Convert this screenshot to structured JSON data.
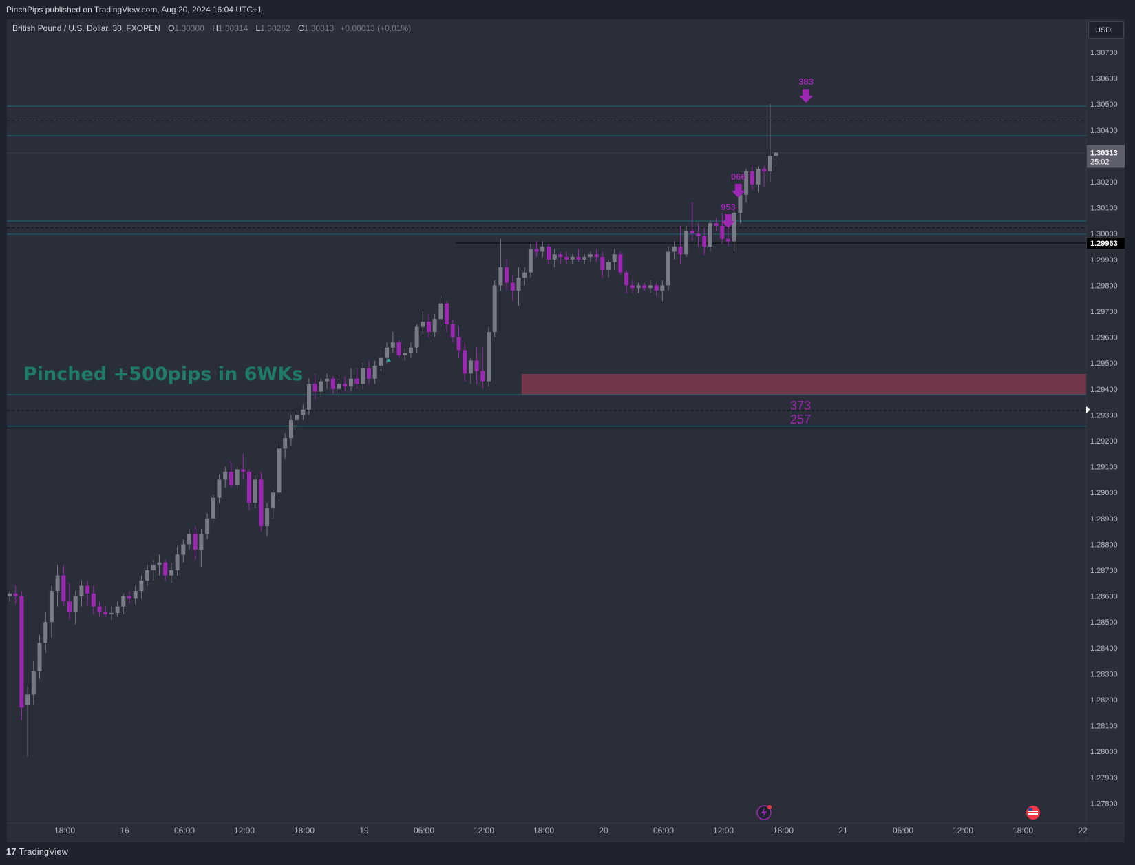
{
  "header": {
    "published": "PinchPips published on TradingView.com, Aug 20, 2024 16:04 UTC+1"
  },
  "symbol": {
    "title": "British Pound / U.S. Dollar, 30, FXOPEN",
    "o_label": "O",
    "o_value": "1.30300",
    "h_label": "H",
    "h_value": "1.30314",
    "l_label": "L",
    "l_value": "1.30262",
    "c_label": "C",
    "c_value": "1.30313",
    "change": "+0.00013 (+0.01%)"
  },
  "currency_button": "USD",
  "footer": {
    "brand": "TradingView",
    "brand_mark": "17"
  },
  "colors": {
    "background": "#2a2e39",
    "bull": "#787b86",
    "bear": "#9c27b0",
    "level_line": "#1b6e7a",
    "zone": "#8b3a4f",
    "annotation_text": "#1f7a6a",
    "marker": "#9c27b0"
  },
  "chart_data": {
    "type": "candlestick",
    "title": "British Pound / U.S. Dollar, 30, FXOPEN",
    "ylim": [
      1.2773,
      1.3081
    ],
    "y_ticks": [
      "1.30700",
      "1.30600",
      "1.30500",
      "1.30400",
      "1.30200",
      "1.30100",
      "1.30000",
      "1.29900",
      "1.29800",
      "1.29700",
      "1.29600",
      "1.29500",
      "1.29400",
      "1.29300",
      "1.29200",
      "1.29100",
      "1.29000",
      "1.28900",
      "1.28800",
      "1.28700",
      "1.28600",
      "1.28500",
      "1.28400",
      "1.28300",
      "1.28200",
      "1.28100",
      "1.28000",
      "1.27900",
      "1.27800"
    ],
    "x_ticks": [
      "18:00",
      "16",
      "06:00",
      "12:00",
      "18:00",
      "19",
      "06:00",
      "12:00",
      "18:00",
      "20",
      "06:00",
      "12:00",
      "18:00",
      "21",
      "06:00",
      "12:00",
      "18:00",
      "22"
    ],
    "price_label": {
      "value": "1.30313",
      "timer": "25:02"
    },
    "level_label": {
      "value": "1.29963"
    },
    "annotation": "Pinched +500pips in 6WKs",
    "horizontal_levels": [
      {
        "price": 1.30492,
        "style": "solid"
      },
      {
        "price": 1.30435,
        "style": "dashed"
      },
      {
        "price": 1.30378,
        "style": "solid"
      },
      {
        "price": 1.30313,
        "style": "dotted"
      },
      {
        "price": 1.30048,
        "style": "solid"
      },
      {
        "price": 1.30023,
        "style": "dashed"
      },
      {
        "price": 1.29998,
        "style": "solid"
      },
      {
        "price": 1.29378,
        "style": "solid"
      },
      {
        "price": 1.29317,
        "style": "dashed"
      },
      {
        "price": 1.29257,
        "style": "solid"
      }
    ],
    "black_level": {
      "price": 1.29963,
      "from": 74.5
    },
    "zone": {
      "from": 85.5,
      "top": 1.29458,
      "bottom": 1.29378
    },
    "zone_labels": [
      "373",
      "257"
    ],
    "markers": [
      {
        "label": "953",
        "index": 120,
        "price": 1.30016
      },
      {
        "label": "066",
        "index": 121.7,
        "price": 1.30134
      },
      {
        "label": "383",
        "index": 133,
        "price": 1.305
      }
    ],
    "candles": [
      [
        1.286,
        1.2862,
        1.2858,
        1.2861
      ],
      [
        1.2861,
        1.2864,
        1.2857,
        1.286
      ],
      [
        1.286,
        1.2862,
        1.2812,
        1.2817
      ],
      [
        1.2818,
        1.2825,
        1.2798,
        1.2822
      ],
      [
        1.2822,
        1.2835,
        1.2818,
        1.2831
      ],
      [
        1.2831,
        1.2845,
        1.2828,
        1.2842
      ],
      [
        1.2842,
        1.2854,
        1.2838,
        1.285
      ],
      [
        1.285,
        1.2864,
        1.2844,
        1.2862
      ],
      [
        1.2862,
        1.2872,
        1.2856,
        1.2868
      ],
      [
        1.2868,
        1.2872,
        1.2856,
        1.2858
      ],
      [
        1.2858,
        1.2865,
        1.2851,
        1.2854
      ],
      [
        1.2854,
        1.2862,
        1.2849,
        1.286
      ],
      [
        1.286,
        1.2866,
        1.2856,
        1.2864
      ],
      [
        1.2864,
        1.2866,
        1.2856,
        1.2861
      ],
      [
        1.2861,
        1.2864,
        1.2853,
        1.2856
      ],
      [
        1.2856,
        1.2858,
        1.2852,
        1.2854
      ],
      [
        1.2854,
        1.2856,
        1.2852,
        1.2853
      ],
      [
        1.2853,
        1.2856,
        1.2851,
        1.28535
      ],
      [
        1.28535,
        1.2858,
        1.2852,
        1.2856
      ],
      [
        1.2856,
        1.2861,
        1.2853,
        1.286
      ],
      [
        1.286,
        1.2862,
        1.2857,
        1.2859
      ],
      [
        1.2859,
        1.2864,
        1.2857,
        1.2862
      ],
      [
        1.2862,
        1.2868,
        1.2859,
        1.2866
      ],
      [
        1.2866,
        1.2872,
        1.2864,
        1.287
      ],
      [
        1.287,
        1.2874,
        1.2866,
        1.2872
      ],
      [
        1.2872,
        1.2876,
        1.2868,
        1.2873
      ],
      [
        1.2873,
        1.2874,
        1.2866,
        1.2868
      ],
      [
        1.2868,
        1.2873,
        1.2865,
        1.287
      ],
      [
        1.287,
        1.2879,
        1.2868,
        1.2876
      ],
      [
        1.2876,
        1.2882,
        1.2873,
        1.288
      ],
      [
        1.288,
        1.2886,
        1.2878,
        1.2884
      ],
      [
        1.2884,
        1.2887,
        1.2874,
        1.2878
      ],
      [
        1.2878,
        1.2886,
        1.2871,
        1.2884
      ],
      [
        1.2884,
        1.2892,
        1.2882,
        1.289
      ],
      [
        1.289,
        1.2899,
        1.2888,
        1.2898
      ],
      [
        1.2898,
        1.2907,
        1.2896,
        1.2905
      ],
      [
        1.2905,
        1.291,
        1.2902,
        1.2908
      ],
      [
        1.2908,
        1.2912,
        1.2902,
        1.2903
      ],
      [
        1.2903,
        1.291,
        1.2901,
        1.2909
      ],
      [
        1.2909,
        1.2915,
        1.2905,
        1.2908
      ],
      [
        1.2908,
        1.2909,
        1.2893,
        1.2896
      ],
      [
        1.2896,
        1.2907,
        1.2894,
        1.2905
      ],
      [
        1.2905,
        1.2908,
        1.2885,
        1.2887
      ],
      [
        1.2887,
        1.2896,
        1.2883,
        1.2894
      ],
      [
        1.2894,
        1.2901,
        1.289,
        1.29
      ],
      [
        1.29,
        1.2919,
        1.2898,
        1.2917
      ],
      [
        1.2917,
        1.2923,
        1.2913,
        1.2921
      ],
      [
        1.2921,
        1.293,
        1.2918,
        1.2928
      ],
      [
        1.2928,
        1.2932,
        1.2925,
        1.293
      ],
      [
        1.293,
        1.2934,
        1.2928,
        1.2932
      ],
      [
        1.2932,
        1.2944,
        1.293,
        1.2942
      ],
      [
        1.2942,
        1.2946,
        1.2936,
        1.2939
      ],
      [
        1.2939,
        1.2944,
        1.2937,
        1.2943
      ],
      [
        1.2943,
        1.2946,
        1.294,
        1.2944
      ],
      [
        1.2944,
        1.2945,
        1.2938,
        1.294
      ],
      [
        1.294,
        1.2944,
        1.2938,
        1.2942
      ],
      [
        1.2942,
        1.2945,
        1.2939,
        1.2941
      ],
      [
        1.2941,
        1.2948,
        1.2939,
        1.2944
      ],
      [
        1.2944,
        1.2948,
        1.294,
        1.2942
      ],
      [
        1.2942,
        1.295,
        1.294,
        1.2948
      ],
      [
        1.2948,
        1.2951,
        1.2942,
        1.2944
      ],
      [
        1.2944,
        1.2951,
        1.2942,
        1.2949
      ],
      [
        1.2949,
        1.2954,
        1.2947,
        1.2952
      ],
      [
        1.2952,
        1.2958,
        1.295,
        1.2956
      ],
      [
        1.2956,
        1.2962,
        1.2954,
        1.2958
      ],
      [
        1.2958,
        1.2959,
        1.2952,
        1.2953
      ],
      [
        1.2953,
        1.2956,
        1.2951,
        1.2954
      ],
      [
        1.2954,
        1.2958,
        1.2952,
        1.2956
      ],
      [
        1.2956,
        1.2965,
        1.2954,
        1.2964
      ],
      [
        1.2964,
        1.297,
        1.2961,
        1.2966
      ],
      [
        1.2966,
        1.2969,
        1.296,
        1.2962
      ],
      [
        1.2962,
        1.2969,
        1.296,
        1.2967
      ],
      [
        1.2967,
        1.2976,
        1.2964,
        1.2973
      ],
      [
        1.2973,
        1.2974,
        1.2962,
        1.2965
      ],
      [
        1.2965,
        1.2967,
        1.2958,
        1.296
      ],
      [
        1.296,
        1.2964,
        1.2952,
        1.2955
      ],
      [
        1.2955,
        1.2958,
        1.2943,
        1.2946
      ],
      [
        1.2946,
        1.2952,
        1.2942,
        1.2951
      ],
      [
        1.2951,
        1.2956,
        1.2942,
        1.2947
      ],
      [
        1.2947,
        1.2956,
        1.294,
        1.2943
      ],
      [
        1.2943,
        1.2964,
        1.2941,
        1.2962
      ],
      [
        1.2962,
        1.2982,
        1.296,
        1.298
      ],
      [
        1.298,
        1.2998,
        1.2978,
        1.2987
      ],
      [
        1.2987,
        1.299,
        1.2978,
        1.2981
      ],
      [
        1.2981,
        1.2984,
        1.2974,
        1.2978
      ],
      [
        1.2978,
        1.2987,
        1.2972,
        1.2983
      ],
      [
        1.2983,
        1.2987,
        1.298,
        1.2985
      ],
      [
        1.2985,
        1.2996,
        1.2983,
        1.2994
      ],
      [
        1.2994,
        1.2997,
        1.2991,
        1.2993
      ],
      [
        1.2993,
        1.2997,
        1.2991,
        1.2995
      ],
      [
        1.2995,
        1.2996,
        1.2988,
        1.299
      ],
      [
        1.299,
        1.2994,
        1.2987,
        1.2992
      ],
      [
        1.2992,
        1.2993,
        1.2988,
        1.2991
      ],
      [
        1.2991,
        1.2993,
        1.2988,
        1.299
      ],
      [
        1.299,
        1.2992,
        1.2988,
        1.2991
      ],
      [
        1.2991,
        1.2994,
        1.2989,
        1.299
      ],
      [
        1.299,
        1.2992,
        1.2988,
        1.2991
      ],
      [
        1.2991,
        1.2993,
        1.2989,
        1.2992
      ],
      [
        1.2992,
        1.2994,
        1.2989,
        1.2991
      ],
      [
        1.2991,
        1.2993,
        1.2983,
        1.2986
      ],
      [
        1.2986,
        1.299,
        1.2983,
        1.2989
      ],
      [
        1.2989,
        1.2994,
        1.2986,
        1.2992
      ],
      [
        1.2992,
        1.2993,
        1.2984,
        1.2985
      ],
      [
        1.2985,
        1.2986,
        1.2977,
        1.298
      ],
      [
        1.298,
        1.2982,
        1.2977,
        1.2979
      ],
      [
        1.2979,
        1.2981,
        1.2977,
        1.298
      ],
      [
        1.298,
        1.2981,
        1.2978,
        1.2979
      ],
      [
        1.2979,
        1.2982,
        1.2977,
        1.298
      ],
      [
        1.298,
        1.2981,
        1.2976,
        1.2978
      ],
      [
        1.2978,
        1.2982,
        1.2974,
        1.298
      ],
      [
        1.298,
        1.2995,
        1.2978,
        1.2993
      ],
      [
        1.2993,
        1.2997,
        1.299,
        1.2995
      ],
      [
        1.2995,
        1.3003,
        1.2988,
        1.2992
      ],
      [
        1.2992,
        1.3003,
        1.2991,
        1.3001
      ],
      [
        1.3001,
        1.3012,
        1.2997,
        1.3
      ],
      [
        1.3,
        1.3004,
        1.2995,
        1.2999
      ],
      [
        1.2999,
        1.3002,
        1.2992,
        1.2995
      ],
      [
        1.2995,
        1.3005,
        1.2993,
        1.3004
      ],
      [
        1.3004,
        1.3006,
        1.3001,
        1.3003
      ],
      [
        1.3003,
        1.3008,
        1.2996,
        1.2998
      ],
      [
        1.2998,
        1.3003,
        1.2995,
        1.2997
      ],
      [
        1.2997,
        1.3009,
        1.2993,
        1.3008
      ],
      [
        1.3008,
        1.3015,
        1.3004,
        1.3015
      ],
      [
        1.3015,
        1.3025,
        1.3012,
        1.3024
      ],
      [
        1.3024,
        1.3026,
        1.3017,
        1.3019
      ],
      [
        1.3019,
        1.3026,
        1.3016,
        1.3025
      ],
      [
        1.3025,
        1.3026,
        1.3018,
        1.3024
      ],
      [
        1.3024,
        1.305,
        1.302,
        1.303
      ],
      [
        1.303,
        1.30314,
        1.30262,
        1.30313
      ]
    ]
  }
}
